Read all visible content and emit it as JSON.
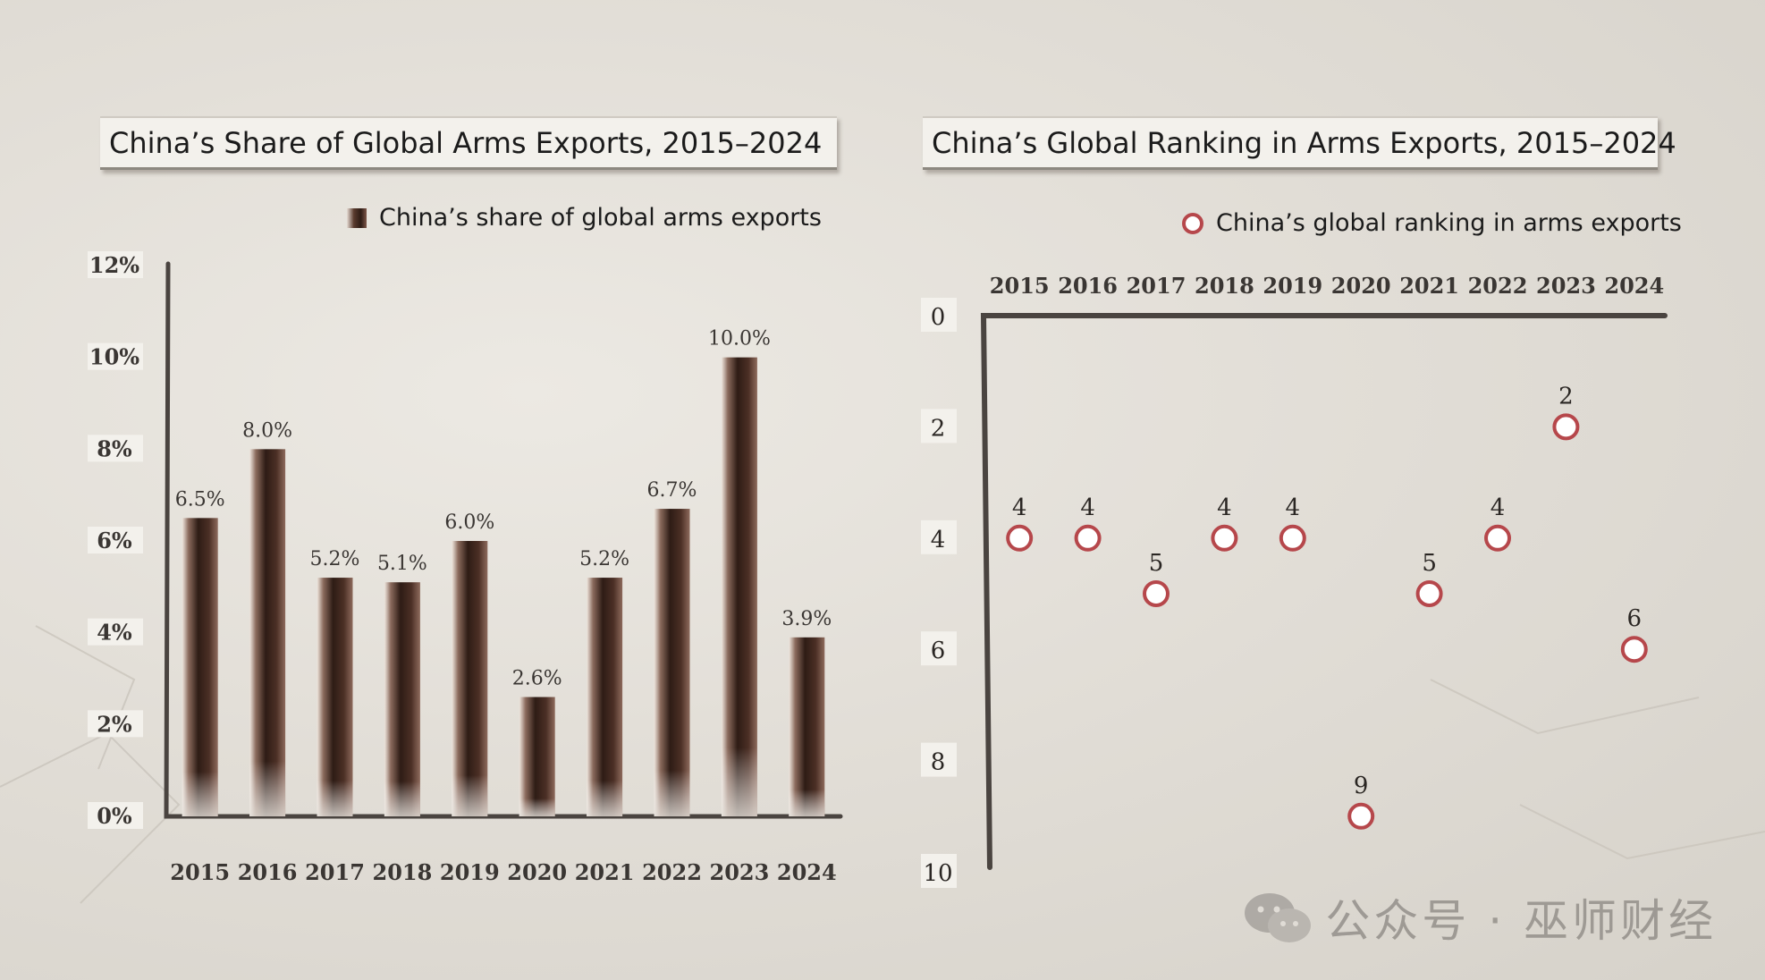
{
  "watermark": {
    "text": "公众号 · 巫师财经",
    "icon": "wechat-icon"
  },
  "colors": {
    "bar_dark": "#2e1c15",
    "bar_mid": "#5a3b2e",
    "circle_stroke": "#b6474b",
    "axis": "#4a4440"
  },
  "chart_data": [
    {
      "type": "bar",
      "title": "China’s Share of Global Arms Exports, 2015–2024",
      "legend": "China’s share of global arms exports",
      "legend_position": "top-right",
      "categories": [
        "2015",
        "2016",
        "2017",
        "2018",
        "2019",
        "2020",
        "2021",
        "2022",
        "2023",
        "2024"
      ],
      "values": [
        6.5,
        8.0,
        5.2,
        5.1,
        6.0,
        2.6,
        5.2,
        6.7,
        10.0,
        3.9
      ],
      "value_labels": [
        "6.5%",
        "8.0%",
        "5.2%",
        "5.1%",
        "6.0%",
        "2.6%",
        "5.2%",
        "6.7%",
        "10.0%",
        "3.9%"
      ],
      "ylim": [
        0,
        12
      ],
      "yticks": [
        "0%",
        "2%",
        "4%",
        "6%",
        "8%",
        "10%",
        "12%"
      ],
      "grid": false
    },
    {
      "type": "scatter",
      "title": "China’s Global Ranking in Arms Exports, 2015–2024",
      "legend": "China’s global ranking in arms exports",
      "legend_position": "top-right",
      "categories": [
        "2015",
        "2016",
        "2017",
        "2018",
        "2019",
        "2020",
        "2021",
        "2022",
        "2023",
        "2024"
      ],
      "values": [
        4,
        4,
        5,
        4,
        4,
        9,
        5,
        4,
        2,
        6
      ],
      "ylim": [
        0,
        10
      ],
      "y_inverted": true,
      "x_axis_position": "top",
      "yticks": [
        "0",
        "2",
        "4",
        "6",
        "8",
        "10"
      ],
      "grid": false
    }
  ]
}
